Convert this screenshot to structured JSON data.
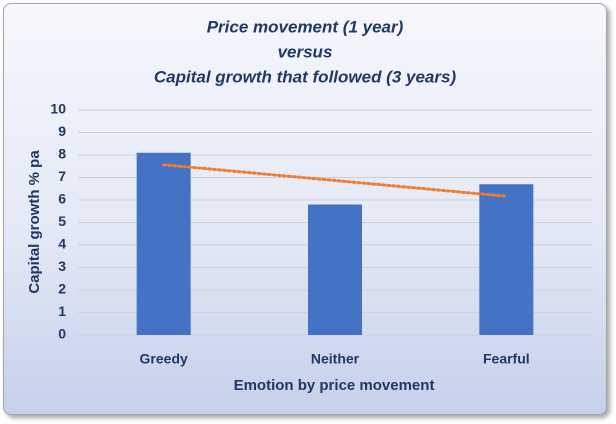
{
  "chart_data": {
    "type": "bar",
    "title": [
      "Price movement (1 year)",
      "versus",
      "Capital growth that followed (3 years)"
    ],
    "x_label": "Emotion by price movement",
    "y_label": "Capital growth % pa",
    "categories": [
      "Greedy",
      "Neither",
      "Fearful"
    ],
    "values": [
      8.1,
      5.8,
      6.7
    ],
    "color": "#4472c4",
    "trendline": true,
    "trendline_color": "#ed7d31",
    "ylim": [
      0,
      10
    ],
    "yticks": [
      0,
      1,
      2,
      3,
      4,
      5,
      6,
      7,
      8,
      9,
      10
    ],
    "grid": true
  }
}
